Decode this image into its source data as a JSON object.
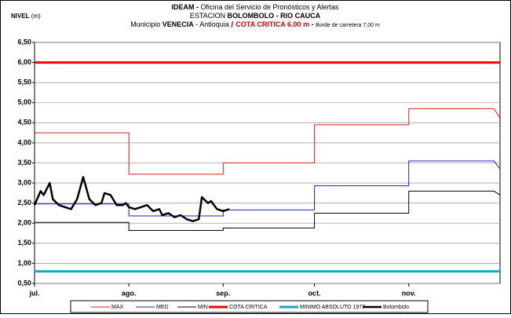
{
  "chart_data": {
    "type": "line",
    "title": {
      "line1": [
        "IDEAM -",
        " Oficina del Servicio de Pronósticos y Alertas"
      ],
      "line2": [
        "ESTACION ",
        "BOLOMBOLO - RIO CAUCA"
      ],
      "line3": [
        "Municipio ",
        "VENECIA",
        " - Antioquia ",
        " / ",
        "COTA CRITICA 6.00 m",
        " - ",
        "  Borde de carretera 7,00 m"
      ]
    },
    "y_label": [
      "NIVEL",
      " (m)"
    ],
    "xlim": [
      0,
      153
    ],
    "xticks": [
      {
        "value": 0,
        "label": "jul."
      },
      {
        "value": 31,
        "label": "ago."
      },
      {
        "value": 62,
        "label": "sep."
      },
      {
        "value": 92,
        "label": "oct."
      },
      {
        "value": 123,
        "label": "nov."
      }
    ],
    "ylim": [
      0.5,
      6.5
    ],
    "yticks": [
      {
        "value": 0.5,
        "label": "0,50"
      },
      {
        "value": 1,
        "label": "1,00"
      },
      {
        "value": 1.5,
        "label": "1,50"
      },
      {
        "value": 2,
        "label": "2,00"
      },
      {
        "value": 2.5,
        "label": "2,50"
      },
      {
        "value": 3,
        "label": "3,00"
      },
      {
        "value": 3.5,
        "label": "3,50"
      },
      {
        "value": 4,
        "label": "4,00"
      },
      {
        "value": 4.5,
        "label": "4,50"
      },
      {
        "value": 5,
        "label": "5,00"
      },
      {
        "value": 5.5,
        "label": "5,50"
      },
      {
        "value": 6,
        "label": "6,00"
      },
      {
        "value": 6.5,
        "label": "6,50"
      }
    ],
    "grid": true,
    "series": [
      {
        "name": "MAX",
        "color": "#e02020",
        "line_width": 1,
        "x": [
          0,
          31,
          31,
          62,
          62,
          92,
          92,
          123,
          123,
          151,
          153
        ],
        "values": [
          4.25,
          4.25,
          3.22,
          3.22,
          3.5,
          3.5,
          4.45,
          4.45,
          4.85,
          4.85,
          4.62
        ]
      },
      {
        "name": "MED",
        "color": "#2020c0",
        "line_width": 1,
        "x": [
          0,
          31,
          31,
          62,
          62,
          92,
          92,
          123,
          123,
          151,
          153
        ],
        "values": [
          2.48,
          2.48,
          2.18,
          2.18,
          2.33,
          2.33,
          2.93,
          2.93,
          3.55,
          3.55,
          3.35
        ]
      },
      {
        "name": "MIN",
        "color": "#000000",
        "line_width": 1,
        "x": [
          0,
          31,
          31,
          62,
          62,
          92,
          92,
          123,
          123,
          151,
          153
        ],
        "values": [
          2.02,
          2.02,
          1.82,
          1.82,
          1.88,
          1.88,
          2.25,
          2.25,
          2.8,
          2.8,
          2.7
        ]
      },
      {
        "name": "COTA CRITICA",
        "color": "#ff0000",
        "line_width": 3,
        "x": [
          0,
          153
        ],
        "values": [
          6.0,
          6.0
        ]
      },
      {
        "name": "MINIMO ABSOLUTO 1977",
        "color": "#1aa3c8",
        "line_width": 3,
        "x": [
          0,
          153
        ],
        "values": [
          0.8,
          0.8
        ]
      },
      {
        "name": "Bolombolo",
        "color": "#000000",
        "line_width": 2.5,
        "x": [
          0,
          2,
          3,
          5,
          6,
          8,
          10,
          12,
          14,
          16,
          18,
          20,
          22,
          23,
          25,
          27,
          29,
          30,
          31,
          33,
          35,
          37,
          39,
          41,
          42,
          44,
          46,
          48,
          50,
          52,
          54,
          55,
          57,
          58,
          60,
          62,
          64
        ],
        "values": [
          2.45,
          2.8,
          2.7,
          3.0,
          2.6,
          2.45,
          2.4,
          2.35,
          2.6,
          3.15,
          2.6,
          2.45,
          2.5,
          2.75,
          2.7,
          2.45,
          2.45,
          2.5,
          2.4,
          2.35,
          2.4,
          2.45,
          2.3,
          2.35,
          2.2,
          2.25,
          2.15,
          2.2,
          2.1,
          2.05,
          2.1,
          2.65,
          2.5,
          2.55,
          2.35,
          2.3,
          2.35
        ]
      }
    ]
  }
}
